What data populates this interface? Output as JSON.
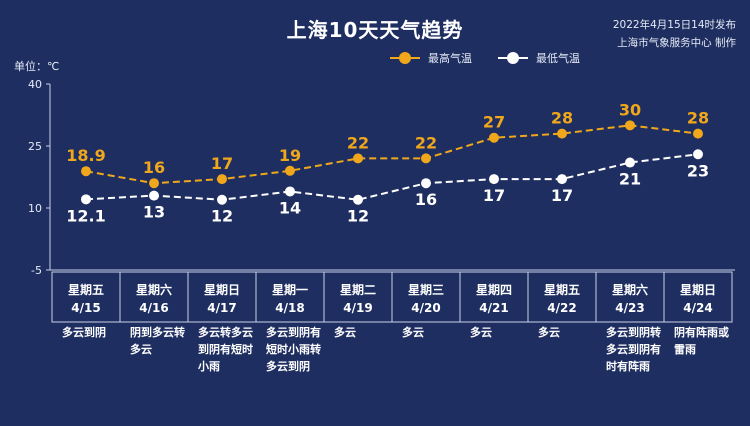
{
  "header": {
    "title": "上海10天天气趋势",
    "published": "2022年4月15日14时发布",
    "producer": "上海市气象服务中心 制作"
  },
  "chart_data": {
    "type": "line",
    "unit_label": "单位：℃",
    "y_ticks": [
      "40",
      "25",
      "10",
      "-5"
    ],
    "ylim": [
      -5,
      40
    ],
    "legend_placement": "top-right",
    "categories": [
      "4/15",
      "4/16",
      "4/17",
      "4/18",
      "4/19",
      "4/20",
      "4/21",
      "4/22",
      "4/23",
      "4/24"
    ],
    "weekdays": [
      "星期五",
      "星期六",
      "星期日",
      "星期一",
      "星期二",
      "星期三",
      "星期四",
      "星期五",
      "星期六",
      "星期日"
    ],
    "descriptions": [
      "多云到阴",
      "阴到多云转多云",
      "多云转多云到阴有短时小雨",
      "多云到阴有短时小雨转多云到阴",
      "多云",
      "多云",
      "多云",
      "多云",
      "多云到阴转多云到阴有时有阵雨",
      "阴有阵雨或雷雨"
    ],
    "series": [
      {
        "name": "最高气温",
        "color": "#f0a71b",
        "values": [
          18.9,
          16,
          17,
          19,
          22,
          22,
          27,
          28,
          30,
          28
        ],
        "labels": [
          "18.9",
          "16",
          "17",
          "19",
          "22",
          "22",
          "27",
          "28",
          "30",
          "28"
        ]
      },
      {
        "name": "最低气温",
        "color": "#ffffff",
        "values": [
          12.1,
          13,
          12,
          14,
          12,
          16,
          17,
          17,
          21,
          23
        ],
        "labels": [
          "12.1",
          "13",
          "12",
          "14",
          "12",
          "16",
          "17",
          "17",
          "21",
          "23"
        ]
      }
    ],
    "grid": false
  }
}
